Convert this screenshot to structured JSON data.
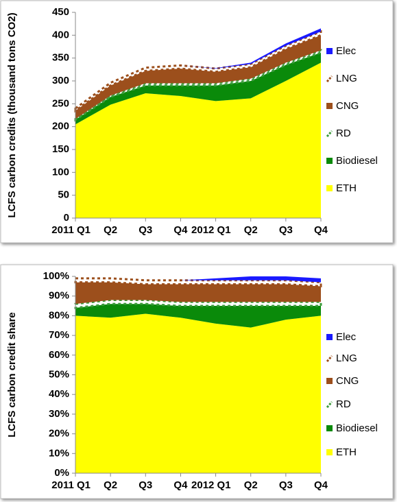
{
  "chart_data": [
    {
      "type": "stacked_area",
      "y_label": "LCFS carbon credits (thousand tons CO2)",
      "categories": [
        "2011 Q1",
        "Q2",
        "Q3",
        "Q4",
        "2012 Q1",
        "Q2",
        "Q3",
        "Q4"
      ],
      "ylim": [
        0,
        450
      ],
      "yticks": [
        0,
        50,
        100,
        150,
        200,
        250,
        300,
        350,
        400,
        450
      ],
      "series": [
        {
          "name": "ETH",
          "color": "#ffff00",
          "values": [
            205,
            248,
            273,
            267,
            256,
            262,
            300,
            340
          ]
        },
        {
          "name": "Biodiesel",
          "color": "#0a8a0a",
          "values": [
            10,
            17,
            17,
            23,
            34,
            38,
            35,
            22
          ]
        },
        {
          "name": "RD",
          "color": "#3a9a3a",
          "hatch": true,
          "values": [
            2,
            3,
            5,
            5,
            5,
            5,
            5,
            5
          ]
        },
        {
          "name": "CNG",
          "color": "#9c4f1c",
          "values": [
            18,
            22,
            27,
            32,
            25,
            25,
            30,
            33
          ]
        },
        {
          "name": "LNG",
          "color": "#9c4f1c",
          "hatch": true,
          "values": [
            5,
            6,
            7,
            7,
            7,
            7,
            7,
            8
          ]
        },
        {
          "name": "Elec",
          "color": "#1a1aff",
          "values": [
            0,
            0,
            0,
            0,
            1,
            3,
            5,
            7
          ]
        }
      ]
    },
    {
      "type": "stacked_area",
      "y_label": "LCFS carbon credit share",
      "categories": [
        "2011 Q1",
        "Q2",
        "Q3",
        "Q4",
        "2012 Q1",
        "Q2",
        "Q3",
        "Q4"
      ],
      "ylim": [
        0,
        100
      ],
      "yticks": [
        {
          "value": 0,
          "label": "0%"
        },
        {
          "value": 10,
          "label": "10%"
        },
        {
          "value": 20,
          "label": "20%"
        },
        {
          "value": 30,
          "label": "30%"
        },
        {
          "value": 40,
          "label": "40%"
        },
        {
          "value": 50,
          "label": "50%"
        },
        {
          "value": 60,
          "label": "60%"
        },
        {
          "value": 70,
          "label": "70%"
        },
        {
          "value": 80,
          "label": "80%"
        },
        {
          "value": 90,
          "label": "90%"
        },
        {
          "value": 100,
          "label": "100%"
        }
      ],
      "series": [
        {
          "name": "ETH",
          "color": "#ffff00",
          "values": [
            80,
            79,
            81,
            79,
            76,
            74,
            78,
            80
          ]
        },
        {
          "name": "Biodiesel",
          "color": "#0a8a0a",
          "values": [
            4,
            7,
            5,
            6,
            9,
            11,
            7,
            5
          ]
        },
        {
          "name": "RD",
          "color": "#3a9a3a",
          "hatch": true,
          "values": [
            2,
            2,
            2,
            2,
            2,
            2,
            2,
            2
          ]
        },
        {
          "name": "CNG",
          "color": "#9c4f1c",
          "values": [
            11,
            9,
            8,
            9,
            9,
            9,
            9,
            8
          ]
        },
        {
          "name": "LNG",
          "color": "#9c4f1c",
          "hatch": true,
          "values": [
            2,
            2,
            2,
            2,
            2,
            2,
            2,
            2
          ]
        },
        {
          "name": "Elec",
          "color": "#1a1aff",
          "values": [
            0,
            0,
            0,
            0,
            1,
            2,
            2,
            2
          ]
        }
      ]
    }
  ]
}
